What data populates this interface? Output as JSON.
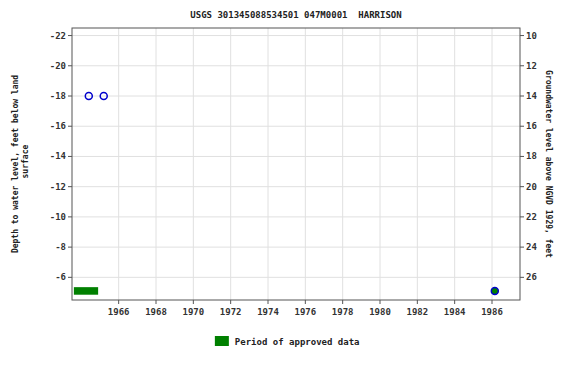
{
  "chart_data": {
    "type": "scatter",
    "title": "USGS 301345088534501 047M0001  HARRISON",
    "y_label": "Depth to water level, feet below land\n surface",
    "y2_label": "Groundwater level above NGVD 1929, feet",
    "xlim": [
      1963.5,
      1987.5
    ],
    "xticks": [
      1966,
      1968,
      1970,
      1972,
      1974,
      1976,
      1978,
      1980,
      1982,
      1984,
      1986
    ],
    "ylim": [
      -4.5,
      -22.5
    ],
    "yticks": [
      -22,
      -20,
      -18,
      -16,
      -14,
      -12,
      -10,
      -8,
      -6
    ],
    "y2lim": [
      27.5,
      9.5
    ],
    "y2ticks": [
      10,
      12,
      14,
      16,
      18,
      20,
      22,
      24,
      26
    ],
    "grid": true,
    "legend": "bottom",
    "series": [
      {
        "type": "scatter",
        "marker": "circle",
        "color": "#0000cc",
        "x": [
          1964.4,
          1965.2
        ],
        "values": [
          -18.0,
          -18.0
        ]
      },
      {
        "type": "span",
        "name": "Period of approved data",
        "color": "#008000",
        "x_start": 1963.6,
        "x_end": 1964.9,
        "y_low": -5.35,
        "y_high": -4.85
      },
      {
        "type": "scatter",
        "marker": "circle",
        "color": "#008000",
        "x": [
          1986.15
        ],
        "values": [
          -5.1
        ]
      }
    ]
  }
}
